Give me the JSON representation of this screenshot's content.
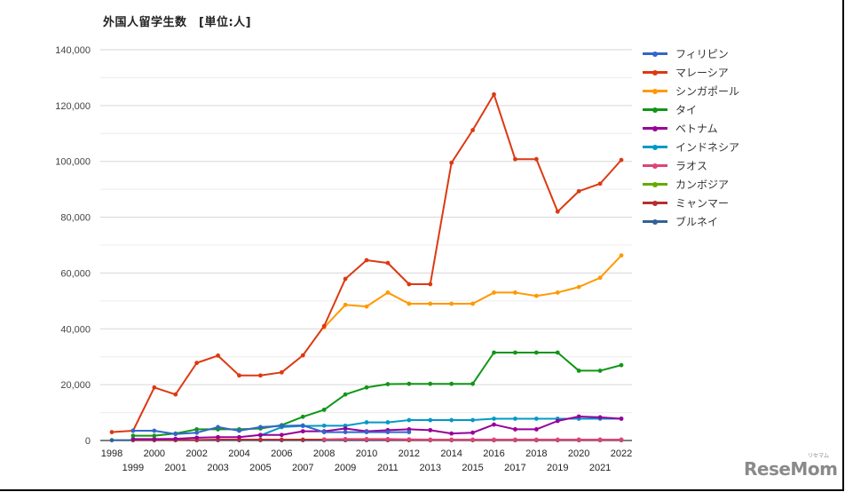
{
  "title": "外国人留学生数　[単位:人]",
  "watermark": "ReseMom",
  "watermark_sub": "リセマム",
  "chart_data": {
    "type": "line",
    "title": "外国人留学生数　[単位:人]",
    "xlabel": "",
    "ylabel": "",
    "ylim": [
      0,
      140000
    ],
    "yticks": [
      "0",
      "20,000",
      "40,000",
      "60,000",
      "80,000",
      "100,000",
      "120,000",
      "140,000"
    ],
    "grid": true,
    "legend_position": "right",
    "x": [
      1998,
      1999,
      2000,
      2001,
      2002,
      2003,
      2004,
      2005,
      2006,
      2007,
      2008,
      2009,
      2010,
      2011,
      2012,
      2013,
      2014,
      2015,
      2016,
      2017,
      2018,
      2019,
      2020,
      2021,
      2022
    ],
    "series": [
      {
        "name": "フィリピン",
        "color": "#3366cc",
        "values": [
          null,
          3500,
          3500,
          2300,
          2800,
          4800,
          3500,
          4800,
          5200,
          5400,
          3000,
          3000,
          3000,
          3000,
          3000,
          null,
          null,
          null,
          null,
          null,
          null,
          null,
          null,
          null,
          null
        ]
      },
      {
        "name": "マレーシア",
        "color": "#dc3912",
        "values": [
          3000,
          3500,
          19000,
          16500,
          27800,
          30400,
          23300,
          23300,
          24400,
          30500,
          41000,
          57900,
          64600,
          63600,
          56000,
          56000,
          99500,
          111200,
          124000,
          100800,
          100800,
          82000,
          89300,
          92000,
          100500
        ]
      },
      {
        "name": "シンガポール",
        "color": "#ff9900",
        "values": [
          null,
          null,
          null,
          null,
          null,
          null,
          null,
          null,
          null,
          null,
          40500,
          48600,
          48000,
          53000,
          49000,
          49000,
          49000,
          49000,
          53000,
          53000,
          51800,
          53000,
          55000,
          58300,
          66300
        ]
      },
      {
        "name": "タイ",
        "color": "#109618",
        "values": [
          null,
          1700,
          1700,
          2500,
          4000,
          4000,
          4000,
          4300,
          5500,
          8500,
          11000,
          16500,
          19000,
          20200,
          20300,
          20300,
          20300,
          20300,
          31500,
          31500,
          31500,
          31500,
          25000,
          25000,
          27000
        ]
      },
      {
        "name": "ベトナム",
        "color": "#990099",
        "values": [
          null,
          500,
          500,
          600,
          1000,
          1200,
          1200,
          2000,
          2000,
          3300,
          3300,
          4300,
          3300,
          3700,
          4000,
          3700,
          2500,
          2800,
          5700,
          4000,
          4000,
          7000,
          8600,
          8300,
          7800
        ]
      },
      {
        "name": "インドネシア",
        "color": "#0099c6",
        "values": [
          null,
          null,
          null,
          null,
          null,
          null,
          null,
          1800,
          4800,
          5200,
          5300,
          5300,
          6500,
          6500,
          7300,
          7300,
          7300,
          7300,
          7800,
          7800,
          7800,
          7800,
          7800,
          7800,
          7800
        ]
      },
      {
        "name": "ラオス",
        "color": "#dd4477",
        "values": [
          null,
          null,
          null,
          null,
          null,
          null,
          null,
          null,
          null,
          null,
          400,
          500,
          500,
          500,
          400,
          300,
          300,
          300,
          300,
          300,
          300,
          300,
          300,
          300,
          300
        ]
      },
      {
        "name": "カンボジア",
        "color": "#66aa00",
        "values": [
          null,
          null,
          null,
          null,
          null,
          null,
          null,
          null,
          null,
          null,
          null,
          null,
          null,
          null,
          null,
          null,
          null,
          null,
          null,
          null,
          null,
          null,
          300,
          300,
          300
        ]
      },
      {
        "name": "ミャンマー",
        "color": "#b82e2e",
        "values": [
          null,
          200,
          200,
          200,
          200,
          300,
          300,
          300,
          300,
          300,
          300,
          300,
          300,
          300,
          200,
          200,
          200,
          200,
          200,
          200,
          200,
          200,
          200,
          200,
          200
        ]
      },
      {
        "name": "ブルネイ",
        "color": "#316395",
        "values": [
          100,
          100,
          100,
          100,
          100,
          100,
          100,
          100,
          100,
          100,
          100,
          100,
          100,
          100,
          100,
          100,
          100,
          100,
          100,
          100,
          100,
          100,
          100,
          100,
          100
        ]
      }
    ]
  }
}
